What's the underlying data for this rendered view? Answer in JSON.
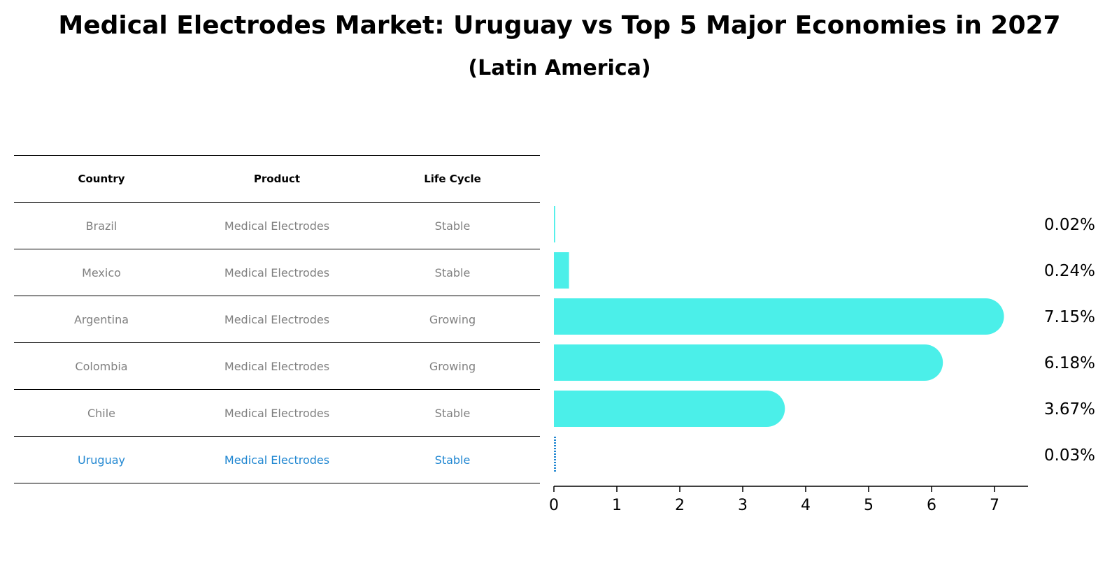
{
  "title": "Medical Electrodes Market: Uruguay vs Top 5 Major Economies in 2027",
  "subtitle": "(Latin America)",
  "table": {
    "headers": [
      "Country",
      "Product",
      "Life Cycle"
    ],
    "rows": [
      [
        "Brazil",
        "Medical Electrodes",
        "Stable"
      ],
      [
        "Mexico",
        "Medical Electrodes",
        "Stable"
      ],
      [
        "Argentina",
        "Medical Electrodes",
        "Growing"
      ],
      [
        "Colombia",
        "Medical Electrodes",
        "Growing"
      ],
      [
        "Chile",
        "Medical Electrodes",
        "Stable"
      ],
      [
        "Uruguay",
        "Medical Electrodes",
        "Stable"
      ]
    ],
    "highlight_row": 5
  },
  "chart_data": {
    "type": "bar",
    "orientation": "horizontal",
    "categories": [
      "Brazil",
      "Mexico",
      "Argentina",
      "Colombia",
      "Chile",
      "Uruguay"
    ],
    "values": [
      0.02,
      0.24,
      7.15,
      6.18,
      3.67,
      0.03
    ],
    "value_labels": [
      "0.02%",
      "0.24%",
      "7.15%",
      "6.18%",
      "3.67%",
      "0.03%"
    ],
    "xticks": [
      0,
      1,
      2,
      3,
      4,
      5,
      6,
      7
    ],
    "xlim": [
      0,
      7.5
    ],
    "bar_color": "#4befe9",
    "highlight_color": "#1f86d1",
    "highlight_index": 5,
    "grid": false
  }
}
